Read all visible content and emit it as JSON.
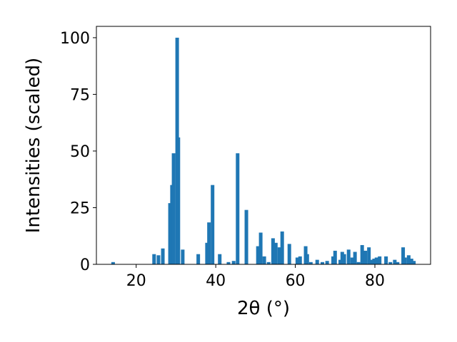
{
  "chart_data": {
    "type": "bar",
    "xlabel": "2θ (°)",
    "ylabel": "Intensities (scaled)",
    "color": "#1f77b4",
    "x": [
      14.2,
      24.5,
      25.6,
      26.7,
      28.5,
      29.0,
      29.4,
      30.3,
      30.6,
      31.7,
      35.6,
      37.8,
      38.3,
      39.2,
      41.0,
      43.2,
      44.5,
      45.5,
      47.7,
      50.6,
      51.3,
      52.2,
      53.3,
      54.4,
      55.1,
      56.0,
      56.7,
      58.5,
      60.5,
      61.2,
      62.6,
      63.0,
      63.9,
      65.5,
      66.8,
      68.0,
      69.5,
      70.0,
      71.3,
      71.8,
      72.3,
      73.4,
      74.3,
      75.0,
      75.9,
      76.8,
      77.6,
      78.5,
      79.0,
      79.8,
      80.4,
      81.2,
      82.8,
      83.9,
      85.0,
      85.7,
      87.1,
      87.6,
      88.5,
      89.2,
      89.8
    ],
    "values": [
      1,
      4.5,
      4,
      7,
      27,
      35,
      49,
      100,
      56,
      6.5,
      4.5,
      9.5,
      18.5,
      35,
      4.5,
      1,
      1.5,
      49,
      24,
      8,
      14,
      3.5,
      1,
      11.5,
      9.5,
      7.5,
      14.5,
      9,
      3,
      3.5,
      8,
      4.5,
      1,
      2,
      1,
      1.5,
      3.5,
      6,
      2,
      5.5,
      4.5,
      6.5,
      3,
      5.5,
      1,
      8.5,
      6,
      7.5,
      2,
      2.5,
      3,
      3.5,
      3.5,
      1,
      2,
      1,
      7.5,
      3,
      4,
      2.5,
      1.5
    ],
    "xlim": [
      10,
      94
    ],
    "ylim": [
      0,
      105
    ],
    "xticks": [
      20,
      40,
      60,
      80
    ],
    "yticks": [
      0,
      25,
      50,
      75,
      100
    ]
  }
}
